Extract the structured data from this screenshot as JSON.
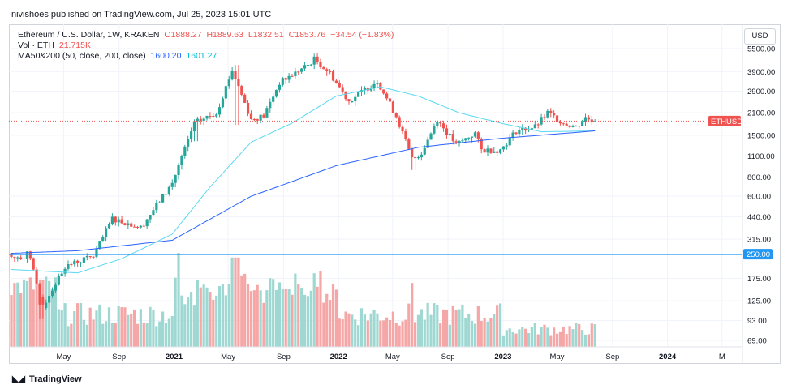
{
  "publisher_line": "nivishoes published on TradingView.com, Jul 25, 2023 15:01 UTC",
  "legend": {
    "symbol": "Ethereum / U.S. Dollar, 1W, KRAKEN",
    "open": "O1888.27",
    "high": "H1889.63",
    "low": "L1832.51",
    "close": "C1853.76",
    "change": "−34.54 (−1.83%)",
    "vol_label": "Vol · ETH",
    "vol_value": "21.715K",
    "ma_label": "MA50&200 (50, close, 200, close)",
    "ma_fast": "1600.20",
    "ma_slow": "1601.27"
  },
  "currency_button": "USD",
  "footer_brand": "TradingView",
  "colors": {
    "up": "#26a69a",
    "down": "#ef5350",
    "ma_fast": "#5ad8f0",
    "ma_slow": "#2962ff",
    "hline": "#2196f3",
    "vol_up": "#9fd8d2",
    "vol_down": "#f5a6a6"
  },
  "chart_data": {
    "type": "candlestick",
    "price_scale": "log",
    "y_axis_ticks": [
      "5500.00",
      "3900.00",
      "2900.00",
      "2100.00",
      "1500.00",
      "1100.00",
      "800.00",
      "600.00",
      "440.00",
      "315.00",
      "250.00",
      "175.00",
      "125.00",
      "93.00",
      "69.00"
    ],
    "x_axis_ticks": [
      "May",
      "Sep",
      "2021",
      "May",
      "Sep",
      "2022",
      "May",
      "Sep",
      "2023",
      "May",
      "Sep",
      "2024",
      "M"
    ],
    "horizontal_line": {
      "value": 250,
      "label": "250.00"
    },
    "last_price_tag": "ETHUSD",
    "price_anchors": [
      {
        "date": "2020-02-10",
        "close": 270
      },
      {
        "date": "2020-03-16",
        "close": 115
      },
      {
        "date": "2020-05-04",
        "close": 210
      },
      {
        "date": "2020-07-06",
        "close": 245
      },
      {
        "date": "2020-08-17",
        "close": 430
      },
      {
        "date": "2020-10-19",
        "close": 375
      },
      {
        "date": "2020-12-28",
        "close": 730
      },
      {
        "date": "2021-02-15",
        "close": 1800
      },
      {
        "date": "2021-04-05",
        "close": 2100
      },
      {
        "date": "2021-05-10",
        "close": 4000
      },
      {
        "date": "2021-06-21",
        "close": 1900
      },
      {
        "date": "2021-07-19",
        "close": 2000
      },
      {
        "date": "2021-08-23",
        "close": 3300
      },
      {
        "date": "2021-10-25",
        "close": 4300
      },
      {
        "date": "2021-11-08",
        "close": 4700
      },
      {
        "date": "2021-12-13",
        "close": 3800
      },
      {
        "date": "2022-01-24",
        "close": 2500
      },
      {
        "date": "2022-03-28",
        "close": 3400
      },
      {
        "date": "2022-05-09",
        "close": 2000
      },
      {
        "date": "2022-06-13",
        "close": 1050
      },
      {
        "date": "2022-07-04",
        "close": 1150
      },
      {
        "date": "2022-08-08",
        "close": 1900
      },
      {
        "date": "2022-09-19",
        "close": 1300
      },
      {
        "date": "2022-10-31",
        "close": 1550
      },
      {
        "date": "2022-11-14",
        "close": 1200
      },
      {
        "date": "2022-12-26",
        "close": 1200
      },
      {
        "date": "2023-01-30",
        "close": 1600
      },
      {
        "date": "2023-03-13",
        "close": 1700
      },
      {
        "date": "2023-04-10",
        "close": 2100
      },
      {
        "date": "2023-05-15",
        "close": 1800
      },
      {
        "date": "2023-06-12",
        "close": 1700
      },
      {
        "date": "2023-07-03",
        "close": 1950
      },
      {
        "date": "2023-07-24",
        "close": 1853.76
      }
    ],
    "ma50_anchors": [
      {
        "date": "2020-01-06",
        "value": 200
      },
      {
        "date": "2020-06-01",
        "value": 190
      },
      {
        "date": "2020-09-07",
        "value": 235
      },
      {
        "date": "2020-12-28",
        "value": 340
      },
      {
        "date": "2021-03-22",
        "value": 690
      },
      {
        "date": "2021-06-21",
        "value": 1350
      },
      {
        "date": "2021-09-20",
        "value": 1800
      },
      {
        "date": "2021-12-27",
        "value": 2700
      },
      {
        "date": "2022-04-04",
        "value": 3100
      },
      {
        "date": "2022-06-27",
        "value": 2700
      },
      {
        "date": "2022-09-26",
        "value": 2100
      },
      {
        "date": "2022-12-26",
        "value": 1800
      },
      {
        "date": "2023-03-27",
        "value": 1580
      },
      {
        "date": "2023-07-24",
        "value": 1600
      }
    ],
    "ma200_anchors": [
      {
        "date": "2020-01-06",
        "value": 255
      },
      {
        "date": "2020-06-01",
        "value": 265
      },
      {
        "date": "2020-12-28",
        "value": 310
      },
      {
        "date": "2021-06-21",
        "value": 600
      },
      {
        "date": "2021-12-27",
        "value": 950
      },
      {
        "date": "2022-06-27",
        "value": 1250
      },
      {
        "date": "2022-12-26",
        "value": 1430
      },
      {
        "date": "2023-07-24",
        "value": 1600
      }
    ]
  }
}
